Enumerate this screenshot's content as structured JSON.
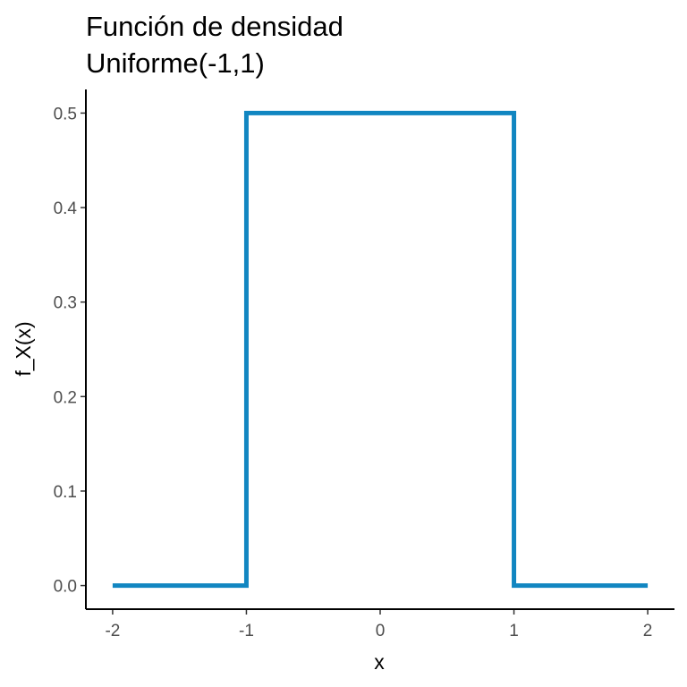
{
  "chart_data": {
    "type": "line",
    "title": "Función de densidad",
    "subtitle": "Uniforme(-1,1)",
    "xlabel": "x",
    "ylabel": "f_X(x)",
    "xlim": [
      -2.2,
      2.2
    ],
    "ylim": [
      -0.025,
      0.525
    ],
    "x_ticks": [
      -2,
      -1,
      0,
      1,
      2
    ],
    "y_ticks": [
      0.0,
      0.1,
      0.2,
      0.3,
      0.4,
      0.5
    ],
    "x_tick_labels": [
      "-2",
      "-1",
      "0",
      "1",
      "2"
    ],
    "y_tick_labels": [
      "0.0",
      "0.1",
      "0.2",
      "0.3",
      "0.4",
      "0.5"
    ],
    "grid": false,
    "series": [
      {
        "color": "#1186c1",
        "x": [
          -2,
          -1,
          -1,
          1,
          1,
          2
        ],
        "y": [
          0,
          0,
          0.5,
          0.5,
          0,
          0
        ]
      }
    ]
  }
}
